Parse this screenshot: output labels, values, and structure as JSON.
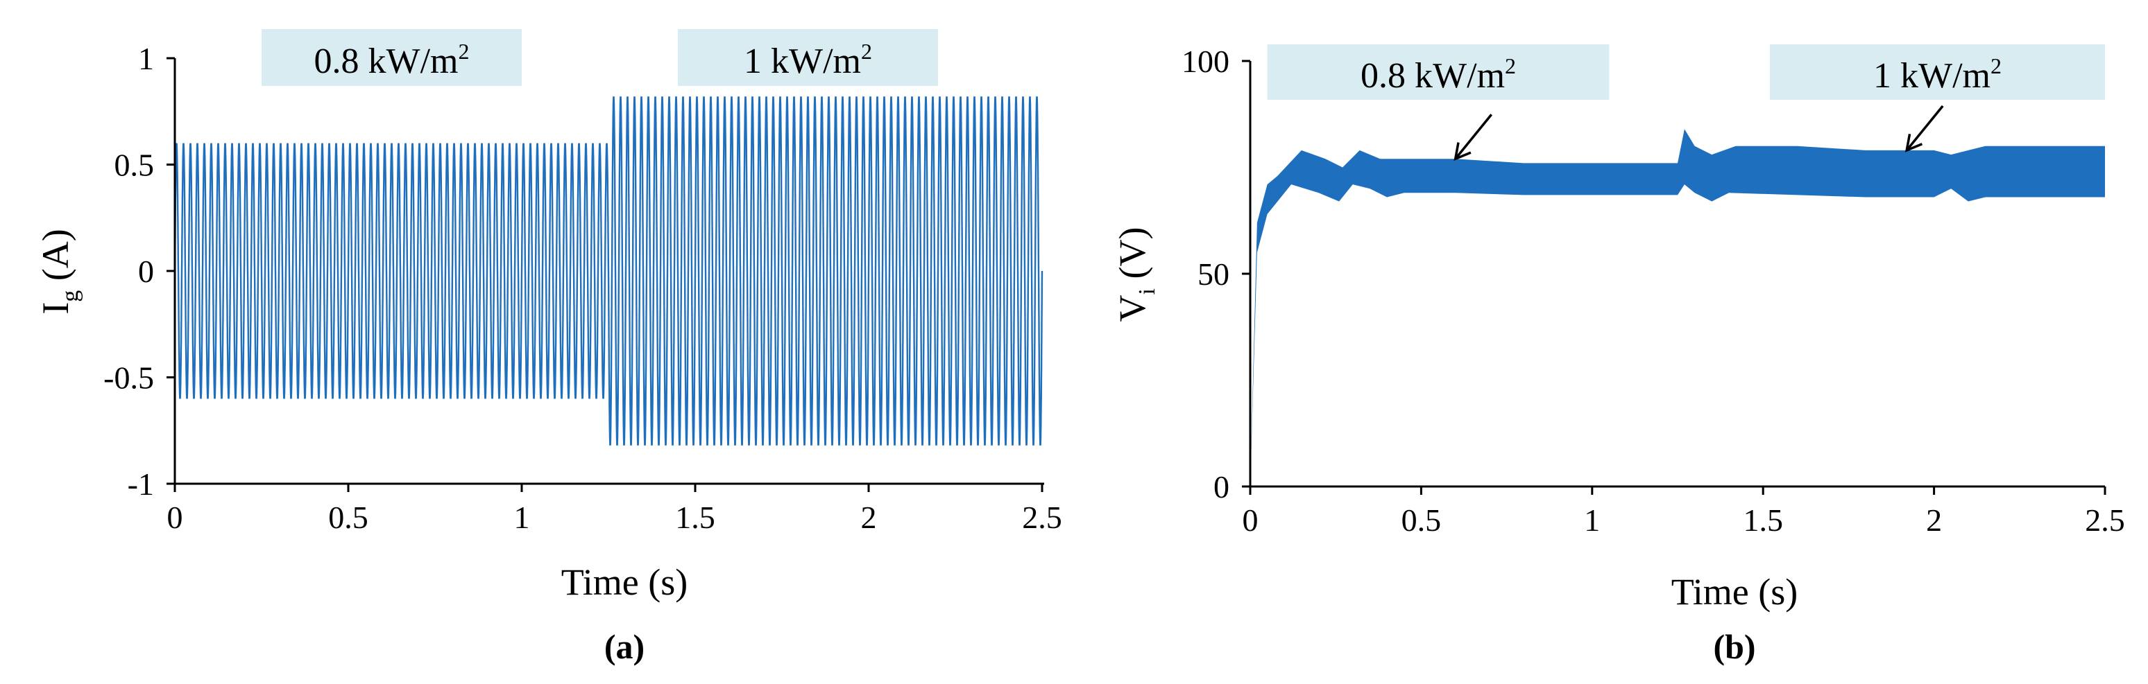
{
  "colors": {
    "series": "#1f6fbf",
    "annotation_box": "#d8ecf1",
    "axis": "#000000"
  },
  "chart_data": [
    {
      "type": "line",
      "panel_label": "(a)",
      "xlabel": "Time (s)",
      "ylabel_main": "I",
      "ylabel_sub": "g",
      "ylabel_rest": " (A)",
      "xlim": [
        0,
        2.5
      ],
      "ylim": [
        -1,
        1
      ],
      "xticks": [
        "0",
        "0.5",
        "1",
        "1.5",
        "2",
        "2.5"
      ],
      "yticks": [
        "1",
        "0.5",
        "0",
        "-0.5",
        "-1"
      ],
      "series": [
        {
          "name": "I_g",
          "frequency_hz": 50,
          "segments": [
            {
              "t_start": 0.0,
              "t_end": 1.25,
              "amplitude": 0.6
            },
            {
              "t_start": 1.25,
              "t_end": 2.5,
              "amplitude": 0.82
            }
          ]
        }
      ],
      "annotations": [
        {
          "text": "0.8 kW/m",
          "sup": "2",
          "t_start": 0.25,
          "t_end": 1.0
        },
        {
          "text": "1 kW/m",
          "sup": "2",
          "t_start": 1.45,
          "t_end": 2.2
        }
      ]
    },
    {
      "type": "area",
      "panel_label": "(b)",
      "xlabel": "Time (s)",
      "ylabel_main": "V",
      "ylabel_sub": "i",
      "ylabel_rest": " (V)",
      "xlim": [
        0,
        2.5
      ],
      "ylim": [
        0,
        100
      ],
      "xticks": [
        "0",
        "0.5",
        "1",
        "1.5",
        "2",
        "2.5"
      ],
      "yticks": [
        "100",
        "50",
        "0"
      ],
      "series": [
        {
          "name": "V_i envelope",
          "upper": [
            [
              0,
              0
            ],
            [
              0.02,
              62
            ],
            [
              0.05,
              71
            ],
            [
              0.08,
              73
            ],
            [
              0.15,
              79
            ],
            [
              0.22,
              77
            ],
            [
              0.27,
              75
            ],
            [
              0.32,
              79
            ],
            [
              0.38,
              77
            ],
            [
              0.45,
              77
            ],
            [
              0.6,
              77
            ],
            [
              0.8,
              76
            ],
            [
              1.0,
              76
            ],
            [
              1.2,
              76
            ],
            [
              1.25,
              76
            ],
            [
              1.27,
              84
            ],
            [
              1.3,
              80
            ],
            [
              1.35,
              78
            ],
            [
              1.42,
              80
            ],
            [
              1.6,
              80
            ],
            [
              1.8,
              79
            ],
            [
              2.0,
              79
            ],
            [
              2.05,
              78
            ],
            [
              2.1,
              79
            ],
            [
              2.15,
              80
            ],
            [
              2.5,
              80
            ]
          ],
          "lower": [
            [
              0,
              0
            ],
            [
              0.02,
              55
            ],
            [
              0.05,
              64
            ],
            [
              0.08,
              67
            ],
            [
              0.12,
              71
            ],
            [
              0.2,
              69
            ],
            [
              0.26,
              67
            ],
            [
              0.3,
              71
            ],
            [
              0.35,
              70
            ],
            [
              0.4,
              68
            ],
            [
              0.45,
              69
            ],
            [
              0.6,
              69
            ],
            [
              0.8,
              68.5
            ],
            [
              1.0,
              68.5
            ],
            [
              1.25,
              68.5
            ],
            [
              1.27,
              71
            ],
            [
              1.3,
              69
            ],
            [
              1.35,
              67
            ],
            [
              1.4,
              69
            ],
            [
              1.6,
              68.5
            ],
            [
              1.8,
              68
            ],
            [
              2.0,
              68
            ],
            [
              2.05,
              70
            ],
            [
              2.1,
              67
            ],
            [
              2.15,
              68
            ],
            [
              2.5,
              68
            ]
          ]
        }
      ],
      "annotations": [
        {
          "text": "0.8 kW/m",
          "sup": "2",
          "t_start": 0.05,
          "t_end": 1.05,
          "arrow_to": [
            0.6,
            77
          ]
        },
        {
          "text": "1 kW/m",
          "sup": "2",
          "t_start": 1.52,
          "t_end": 2.5,
          "arrow_to": [
            1.92,
            79
          ]
        }
      ]
    }
  ]
}
